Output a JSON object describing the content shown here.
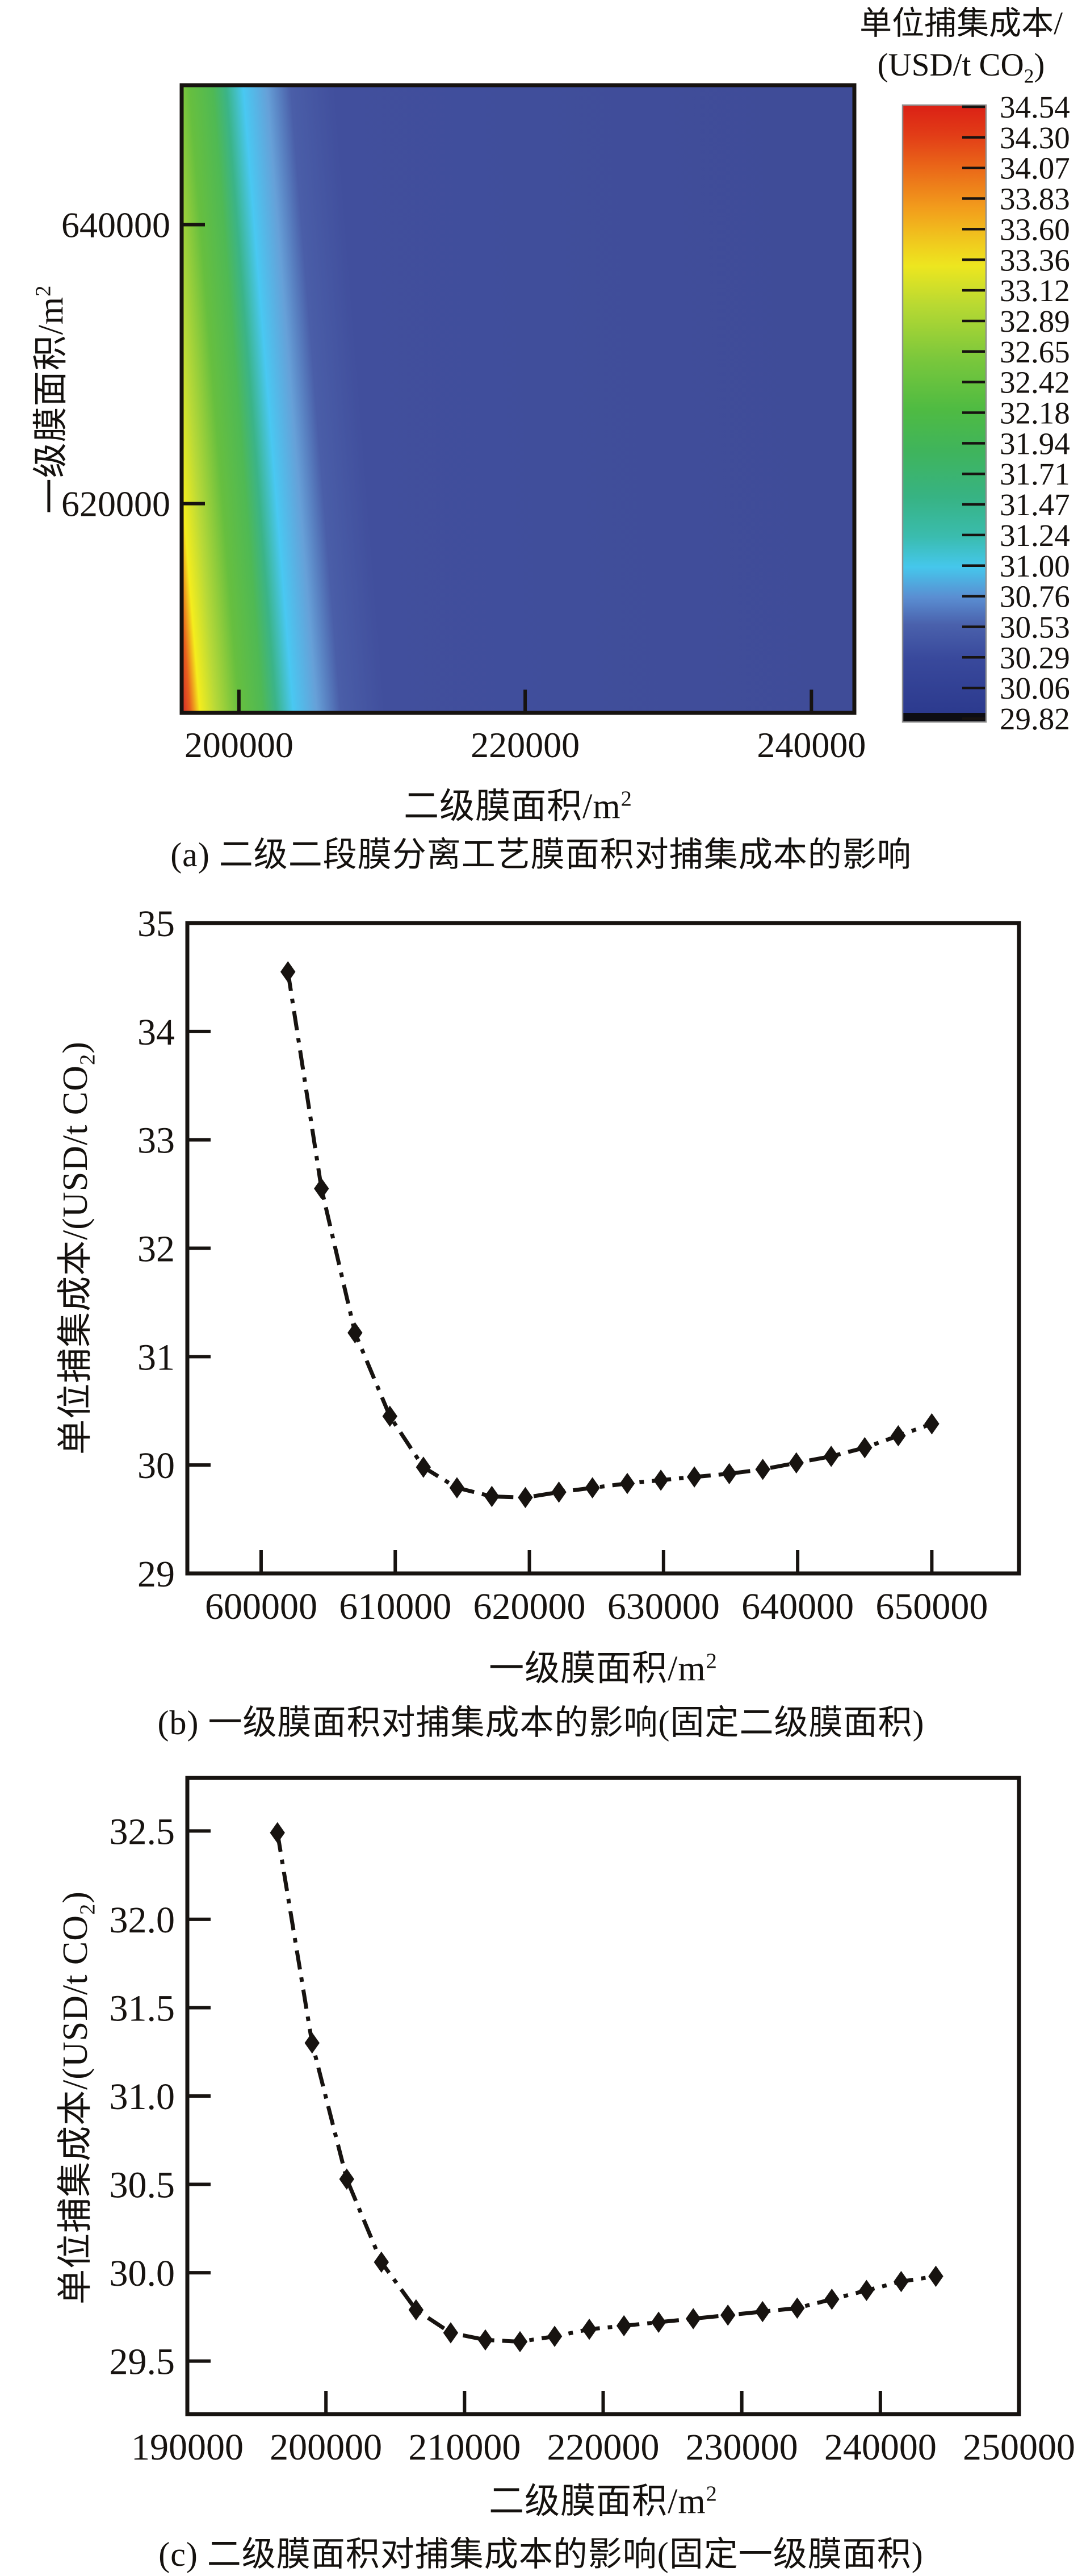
{
  "page": {
    "background": "#ffffff",
    "text_color": "#14110e",
    "accent_black": "#171310"
  },
  "figure_a": {
    "caption": "(a) 二级二段膜分离工艺膜面积对捕集成本的影响",
    "x_axis_label": {
      "base": "二级膜面积/m",
      "sup": "2"
    },
    "y_axis_label": {
      "base": "一级膜面积/m",
      "sup": "2"
    },
    "colorbar_title": {
      "line1": "单位捕集成本/",
      "line2_pre": "(USD/t CO",
      "line2_sub": "2",
      "line2_post": ")"
    }
  },
  "figure_b": {
    "caption": "(b) 一级膜面积对捕集成本的影响(固定二级膜面积)",
    "x_axis_label": {
      "base": "一级膜面积/m",
      "sup": "2"
    },
    "y_axis_label": {
      "pre": "单位捕集成本/(USD/t CO",
      "sub": "2",
      "post": ")"
    }
  },
  "figure_c": {
    "caption": "(c) 二级膜面积对捕集成本的影响(固定一级膜面积)",
    "x_axis_label": {
      "base": "二级膜面积/m",
      "sup": "2"
    },
    "y_axis_label": {
      "pre": "单位捕集成本/(USD/t CO",
      "sub": "2",
      "post": ")"
    }
  },
  "chart_data": [
    {
      "id": "a",
      "type": "heatmap",
      "xlabel": "二级膜面积/m2",
      "ylabel": "一级膜面积/m2",
      "x_range": [
        196000,
        243000
      ],
      "y_range": [
        605000,
        650000
      ],
      "x_tick_values": [
        200000,
        220000,
        240000
      ],
      "x_tick_labels": [
        "200000",
        "220000",
        "240000"
      ],
      "y_tick_values": [
        620000,
        640000
      ],
      "y_tick_labels": [
        "620000",
        "640000"
      ],
      "value_min": 29.82,
      "value_max": 34.54,
      "pattern": "unit capture cost is highest (~34.5, red) at the smallest secondary membrane area along the left edge, dropping steeply through yellow, green and cyan bands to a broad dark-blue plateau (~29.8-30.1) over most of the map; the colored transition front shifts to larger secondary area as primary area decreases (bands tilt right toward the bottom)",
      "field_gradient_stops": [
        [
          0.0,
          "#d0232a"
        ],
        [
          0.013,
          "#e8611e"
        ],
        [
          0.027,
          "#f5ed1d"
        ],
        [
          0.05,
          "#b8d938"
        ],
        [
          0.085,
          "#67bf3f"
        ],
        [
          0.12,
          "#4fb954"
        ],
        [
          0.14,
          "#3bb488"
        ],
        [
          0.165,
          "#49c8f2"
        ],
        [
          0.2,
          "#66a0d8"
        ],
        [
          0.235,
          "#4a5ea8"
        ],
        [
          0.3,
          "#414f9d"
        ],
        [
          1.0,
          "#3f4c98"
        ]
      ],
      "colorbar": {
        "tick_labels": [
          "34.54",
          "34.30",
          "34.07",
          "33.83",
          "33.60",
          "33.36",
          "33.12",
          "32.89",
          "32.65",
          "32.42",
          "32.18",
          "31.94",
          "31.71",
          "31.47",
          "31.24",
          "31.00",
          "30.76",
          "30.53",
          "30.29",
          "30.06",
          "29.82"
        ],
        "gradient_stops": [
          [
            0.0,
            "#db2015"
          ],
          [
            0.05,
            "#e23d17"
          ],
          [
            0.11,
            "#eb6d19"
          ],
          [
            0.17,
            "#f29d1c"
          ],
          [
            0.23,
            "#f0cd1e"
          ],
          [
            0.265,
            "#ede61f"
          ],
          [
            0.33,
            "#b8d932"
          ],
          [
            0.42,
            "#79c73c"
          ],
          [
            0.5,
            "#4fbb42"
          ],
          [
            0.57,
            "#3fb45c"
          ],
          [
            0.645,
            "#37b383"
          ],
          [
            0.71,
            "#3abcae"
          ],
          [
            0.76,
            "#45c7ec"
          ],
          [
            0.81,
            "#5a8ed2"
          ],
          [
            0.855,
            "#4a61ac"
          ],
          [
            0.91,
            "#39499c"
          ],
          [
            1.0,
            "#2c3a8e"
          ]
        ],
        "bottom_strip_color": "#0d0d12"
      }
    },
    {
      "id": "b",
      "type": "line",
      "xlabel": "一级膜面积/m2",
      "ylabel": "单位捕集成本/(USD/t CO2)",
      "x_range": [
        594500,
        656500
      ],
      "y_range": [
        29,
        35
      ],
      "x_tick_values": [
        600000,
        610000,
        620000,
        630000,
        640000,
        650000
      ],
      "x_tick_labels": [
        "600000",
        "610000",
        "620000",
        "630000",
        "640000",
        "650000"
      ],
      "y_tick_values": [
        29,
        30,
        31,
        32,
        33,
        34,
        35
      ],
      "y_tick_labels": [
        "29",
        "30",
        "31",
        "32",
        "33",
        "34",
        "35"
      ],
      "line_style": "dash-dot",
      "marker": "diamond",
      "color": "#171310",
      "x": [
        602000,
        604500,
        607000,
        609600,
        612100,
        614600,
        617200,
        619700,
        622200,
        624700,
        627300,
        629800,
        632300,
        634900,
        637400,
        639900,
        642500,
        645000,
        647500,
        650000
      ],
      "y": [
        34.55,
        32.55,
        31.22,
        30.45,
        29.98,
        29.79,
        29.71,
        29.7,
        29.75,
        29.79,
        29.83,
        29.86,
        29.89,
        29.92,
        29.96,
        30.02,
        30.08,
        30.16,
        30.27,
        30.38
      ]
    },
    {
      "id": "c",
      "type": "line",
      "xlabel": "二级膜面积/m2",
      "ylabel": "单位捕集成本/(USD/t CO2)",
      "x_range": [
        190000,
        250000
      ],
      "y_range": [
        29.2,
        32.8
      ],
      "x_tick_values": [
        190000,
        200000,
        210000,
        220000,
        230000,
        240000,
        250000
      ],
      "x_tick_labels": [
        "190000",
        "200000",
        "210000",
        "220000",
        "230000",
        "240000",
        "250000"
      ],
      "x_ticks_with_marks": [
        200000,
        210000,
        220000,
        230000,
        240000
      ],
      "y_tick_values": [
        29.5,
        30.0,
        30.5,
        31.0,
        31.5,
        32.0,
        32.5
      ],
      "y_tick_labels": [
        "29.5",
        "30.0",
        "30.5",
        "31.0",
        "31.5",
        "32.0",
        "32.5"
      ],
      "line_style": "dash-dot",
      "marker": "diamond",
      "color": "#171310",
      "x": [
        196500,
        199000,
        201500,
        204000,
        206500,
        209000,
        211500,
        214000,
        216500,
        219000,
        221500,
        224000,
        226500,
        229000,
        231500,
        234000,
        236500,
        239000,
        241500,
        244000
      ],
      "y": [
        32.49,
        31.3,
        30.53,
        30.06,
        29.79,
        29.66,
        29.62,
        29.61,
        29.64,
        29.68,
        29.7,
        29.72,
        29.74,
        29.76,
        29.78,
        29.8,
        29.85,
        29.9,
        29.95,
        29.98
      ]
    }
  ]
}
